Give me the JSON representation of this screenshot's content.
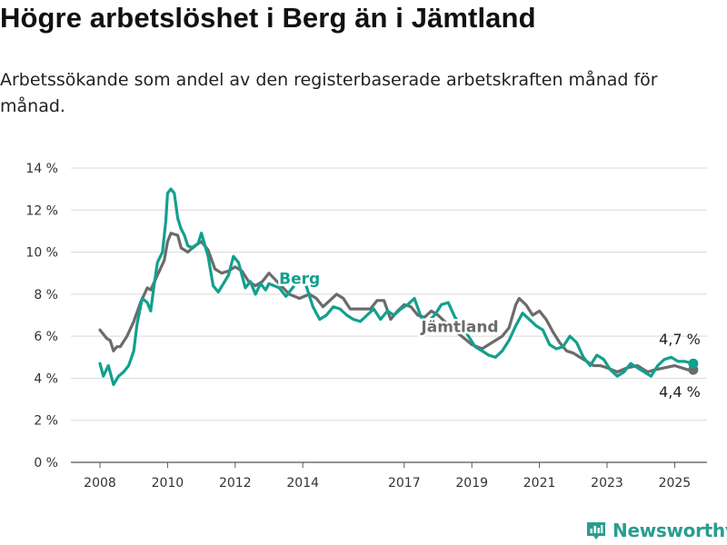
{
  "title": "Högre arbetslöshet i Berg än i Jämtland",
  "subtitle": "Arbetssökande som andel av den registerbaserade arbetskraften månad för månad.",
  "brand": {
    "name": "Newsworthy",
    "color": "#2a9d8f",
    "icon": "bar-chart-icon"
  },
  "chart_data": {
    "type": "line",
    "title": "Högre arbetslöshet i Berg än i Jämtland",
    "ylim": [
      0,
      14
    ],
    "xlim": [
      2008,
      2025.7
    ],
    "y_ticks": [
      0,
      2,
      4,
      6,
      8,
      10,
      12,
      14
    ],
    "y_tick_labels": [
      "0 %",
      "2 %",
      "4 %",
      "6 %",
      "8 %",
      "10 %",
      "12 %",
      "14 %"
    ],
    "x_ticks": [
      2008,
      2010,
      2012,
      2014,
      2017,
      2019,
      2021,
      2023,
      2025
    ],
    "x_tick_labels": [
      "2008",
      "2010",
      "2012",
      "2014",
      "2017",
      "2019",
      "2021",
      "2023",
      "2025"
    ],
    "grid": "horizontal",
    "legend": "inline labels",
    "series": [
      {
        "name": "Jämtland",
        "color": "#6b6b6b",
        "label_pos": [
          2017.5,
          6.2
        ],
        "end_label": "4,4 %",
        "points": [
          [
            2008.0,
            6.3
          ],
          [
            2008.2,
            5.9
          ],
          [
            2008.3,
            5.8
          ],
          [
            2008.4,
            5.3
          ],
          [
            2008.5,
            5.5
          ],
          [
            2008.6,
            5.5
          ],
          [
            2008.8,
            6.0
          ],
          [
            2009.0,
            6.7
          ],
          [
            2009.2,
            7.6
          ],
          [
            2009.4,
            8.3
          ],
          [
            2009.5,
            8.2
          ],
          [
            2009.7,
            8.9
          ],
          [
            2009.9,
            9.6
          ],
          [
            2010.0,
            10.5
          ],
          [
            2010.1,
            10.9
          ],
          [
            2010.3,
            10.8
          ],
          [
            2010.4,
            10.2
          ],
          [
            2010.6,
            10.0
          ],
          [
            2010.8,
            10.3
          ],
          [
            2011.0,
            10.5
          ],
          [
            2011.2,
            10.1
          ],
          [
            2011.4,
            9.2
          ],
          [
            2011.6,
            9.0
          ],
          [
            2011.8,
            9.1
          ],
          [
            2012.0,
            9.3
          ],
          [
            2012.2,
            9.1
          ],
          [
            2012.4,
            8.6
          ],
          [
            2012.6,
            8.4
          ],
          [
            2012.8,
            8.6
          ],
          [
            2013.0,
            9.0
          ],
          [
            2013.3,
            8.5
          ],
          [
            2013.6,
            8.0
          ],
          [
            2013.9,
            7.8
          ],
          [
            2014.2,
            8.0
          ],
          [
            2014.4,
            7.8
          ],
          [
            2014.6,
            7.4
          ],
          [
            2014.8,
            7.7
          ],
          [
            2015.0,
            8.0
          ],
          [
            2015.2,
            7.8
          ],
          [
            2015.4,
            7.3
          ],
          [
            2015.7,
            7.3
          ],
          [
            2016.0,
            7.3
          ],
          [
            2016.2,
            7.7
          ],
          [
            2016.4,
            7.7
          ],
          [
            2016.6,
            6.8
          ],
          [
            2016.8,
            7.2
          ],
          [
            2017.0,
            7.5
          ],
          [
            2017.2,
            7.4
          ],
          [
            2017.4,
            7.0
          ],
          [
            2017.6,
            6.9
          ],
          [
            2017.8,
            7.2
          ],
          [
            2018.0,
            7.0
          ],
          [
            2018.2,
            6.7
          ],
          [
            2018.4,
            6.4
          ],
          [
            2018.7,
            6.0
          ],
          [
            2019.0,
            5.6
          ],
          [
            2019.3,
            5.4
          ],
          [
            2019.6,
            5.7
          ],
          [
            2019.9,
            6.0
          ],
          [
            2020.1,
            6.4
          ],
          [
            2020.3,
            7.5
          ],
          [
            2020.4,
            7.8
          ],
          [
            2020.6,
            7.5
          ],
          [
            2020.8,
            7.0
          ],
          [
            2021.0,
            7.2
          ],
          [
            2021.2,
            6.8
          ],
          [
            2021.4,
            6.2
          ],
          [
            2021.6,
            5.7
          ],
          [
            2021.8,
            5.3
          ],
          [
            2022.0,
            5.2
          ],
          [
            2022.2,
            5.0
          ],
          [
            2022.4,
            4.8
          ],
          [
            2022.6,
            4.6
          ],
          [
            2022.8,
            4.6
          ],
          [
            2023.0,
            4.5
          ],
          [
            2023.3,
            4.3
          ],
          [
            2023.6,
            4.5
          ],
          [
            2023.9,
            4.6
          ],
          [
            2024.2,
            4.3
          ],
          [
            2024.4,
            4.4
          ],
          [
            2024.7,
            4.5
          ],
          [
            2025.0,
            4.6
          ],
          [
            2025.2,
            4.5
          ],
          [
            2025.4,
            4.4
          ],
          [
            2025.55,
            4.4
          ]
        ]
      },
      {
        "name": "Berg",
        "color": "#12a08e",
        "label_pos": [
          2013.3,
          8.5
        ],
        "end_label": "4,7 %",
        "points": [
          [
            2008.0,
            4.7
          ],
          [
            2008.1,
            4.1
          ],
          [
            2008.25,
            4.6
          ],
          [
            2008.4,
            3.7
          ],
          [
            2008.55,
            4.1
          ],
          [
            2008.7,
            4.3
          ],
          [
            2008.85,
            4.6
          ],
          [
            2009.0,
            5.3
          ],
          [
            2009.1,
            6.6
          ],
          [
            2009.25,
            7.8
          ],
          [
            2009.4,
            7.6
          ],
          [
            2009.5,
            7.2
          ],
          [
            2009.6,
            8.4
          ],
          [
            2009.7,
            9.5
          ],
          [
            2009.85,
            10.0
          ],
          [
            2009.95,
            11.5
          ],
          [
            2010.0,
            12.8
          ],
          [
            2010.1,
            13.0
          ],
          [
            2010.2,
            12.8
          ],
          [
            2010.3,
            11.6
          ],
          [
            2010.4,
            11.1
          ],
          [
            2010.5,
            10.8
          ],
          [
            2010.6,
            10.3
          ],
          [
            2010.75,
            10.2
          ],
          [
            2010.9,
            10.4
          ],
          [
            2011.0,
            10.9
          ],
          [
            2011.2,
            9.8
          ],
          [
            2011.35,
            8.4
          ],
          [
            2011.5,
            8.1
          ],
          [
            2011.65,
            8.5
          ],
          [
            2011.8,
            8.9
          ],
          [
            2011.95,
            9.8
          ],
          [
            2012.1,
            9.5
          ],
          [
            2012.3,
            8.3
          ],
          [
            2012.45,
            8.6
          ],
          [
            2012.6,
            8.0
          ],
          [
            2012.75,
            8.5
          ],
          [
            2012.9,
            8.2
          ],
          [
            2013.0,
            8.5
          ],
          [
            2013.3,
            8.3
          ],
          [
            2013.5,
            7.9
          ],
          [
            2013.7,
            8.3
          ],
          [
            2013.9,
            8.8
          ],
          [
            2014.1,
            8.4
          ],
          [
            2014.3,
            7.4
          ],
          [
            2014.5,
            6.8
          ],
          [
            2014.7,
            7.0
          ],
          [
            2014.9,
            7.4
          ],
          [
            2015.1,
            7.3
          ],
          [
            2015.3,
            7.0
          ],
          [
            2015.5,
            6.8
          ],
          [
            2015.7,
            6.7
          ],
          [
            2015.9,
            7.0
          ],
          [
            2016.1,
            7.3
          ],
          [
            2016.3,
            6.8
          ],
          [
            2016.5,
            7.2
          ],
          [
            2016.7,
            7.0
          ],
          [
            2016.9,
            7.3
          ],
          [
            2017.1,
            7.5
          ],
          [
            2017.3,
            7.8
          ],
          [
            2017.5,
            6.9
          ],
          [
            2017.7,
            6.7
          ],
          [
            2017.9,
            7.0
          ],
          [
            2018.1,
            7.5
          ],
          [
            2018.3,
            7.6
          ],
          [
            2018.5,
            6.9
          ],
          [
            2018.7,
            6.5
          ],
          [
            2018.9,
            6.0
          ],
          [
            2019.1,
            5.5
          ],
          [
            2019.3,
            5.3
          ],
          [
            2019.5,
            5.1
          ],
          [
            2019.7,
            5.0
          ],
          [
            2019.9,
            5.3
          ],
          [
            2020.1,
            5.8
          ],
          [
            2020.3,
            6.5
          ],
          [
            2020.5,
            7.1
          ],
          [
            2020.7,
            6.8
          ],
          [
            2020.9,
            6.5
          ],
          [
            2021.1,
            6.3
          ],
          [
            2021.3,
            5.6
          ],
          [
            2021.5,
            5.4
          ],
          [
            2021.7,
            5.5
          ],
          [
            2021.9,
            6.0
          ],
          [
            2022.1,
            5.7
          ],
          [
            2022.3,
            5.0
          ],
          [
            2022.5,
            4.6
          ],
          [
            2022.7,
            5.1
          ],
          [
            2022.9,
            4.9
          ],
          [
            2023.1,
            4.4
          ],
          [
            2023.3,
            4.1
          ],
          [
            2023.5,
            4.3
          ],
          [
            2023.7,
            4.7
          ],
          [
            2023.9,
            4.5
          ],
          [
            2024.1,
            4.3
          ],
          [
            2024.3,
            4.1
          ],
          [
            2024.5,
            4.6
          ],
          [
            2024.7,
            4.9
          ],
          [
            2024.9,
            5.0
          ],
          [
            2025.1,
            4.8
          ],
          [
            2025.3,
            4.8
          ],
          [
            2025.55,
            4.7
          ]
        ]
      }
    ]
  }
}
